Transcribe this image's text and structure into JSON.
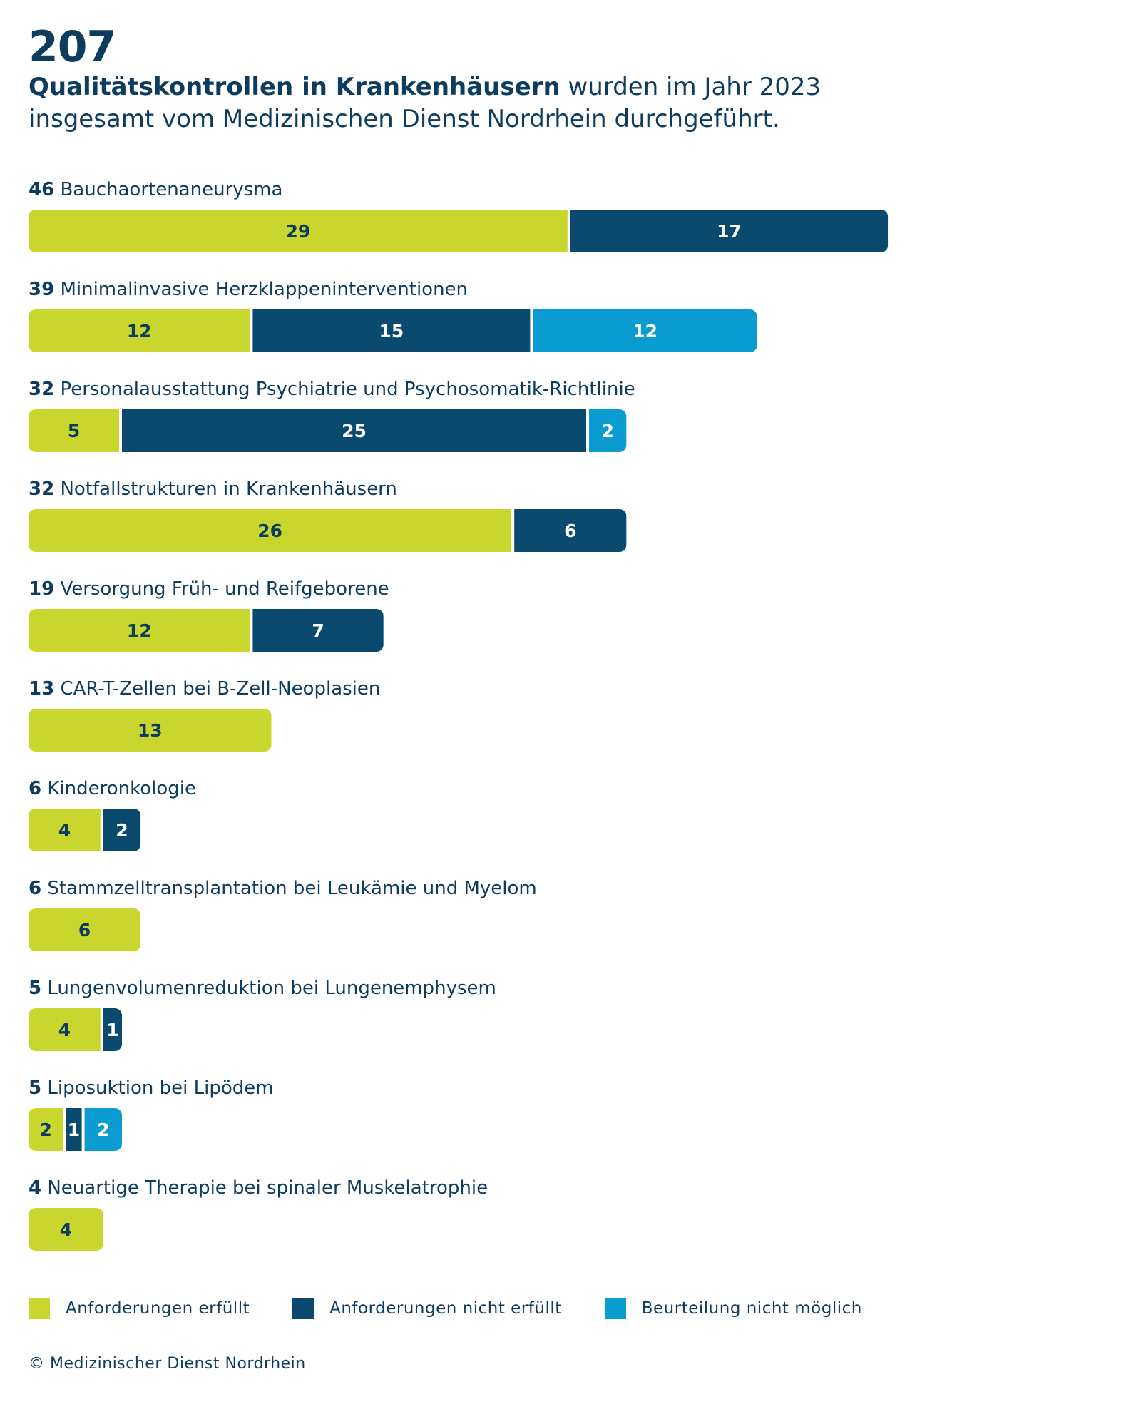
{
  "header": {
    "big_number": "207",
    "intro_bold": "Qualitätskontrollen in Krankenhäusern",
    "intro_rest": " wurden im Jahr 2023",
    "intro_line2": "insgesamt vom Medizinischen Dienst Nordrhein durchgeführt."
  },
  "chart_data": {
    "type": "bar",
    "orientation": "horizontal",
    "stacked": true,
    "categories": [
      "Bauchaortenaneurysma",
      "Minimalinvasive Herzklappeninterventionen",
      "Personalausstattung Psychiatrie und Psychosomatik-Richtlinie",
      "Notfallstrukturen in Krankenhäusern",
      "Versorgung Früh- und Reifgeborene",
      "CAR-T-Zellen bei B-Zell-Neoplasien",
      "Kinderonkologie",
      "Stammzelltransplantation bei Leukämie und Myelom",
      "Lungenvolumenreduktion bei Lungenemphysem",
      "Liposuktion bei Lipödem",
      "Neuartige Therapie bei spinaler Muskelatrophie"
    ],
    "totals": [
      46,
      39,
      32,
      32,
      19,
      13,
      6,
      6,
      5,
      5,
      4
    ],
    "series": [
      {
        "name": "Anforderungen erfüllt",
        "color": "#c8d62e",
        "text_color": "#0d3c5f",
        "values": [
          29,
          12,
          5,
          26,
          12,
          13,
          4,
          6,
          4,
          2,
          4
        ]
      },
      {
        "name": "Anforderungen nicht erfüllt",
        "color": "#0b4a6f",
        "text_color": "#ffffff",
        "values": [
          17,
          15,
          25,
          6,
          7,
          0,
          2,
          0,
          1,
          1,
          0
        ]
      },
      {
        "name": "Beurteilung nicht möglich",
        "color": "#0a9bd0",
        "text_color": "#ffffff",
        "values": [
          0,
          12,
          2,
          0,
          0,
          0,
          0,
          0,
          0,
          2,
          0
        ]
      }
    ]
  },
  "footer": {
    "copyright": "© Medizinischer Dienst Nordrhein"
  }
}
